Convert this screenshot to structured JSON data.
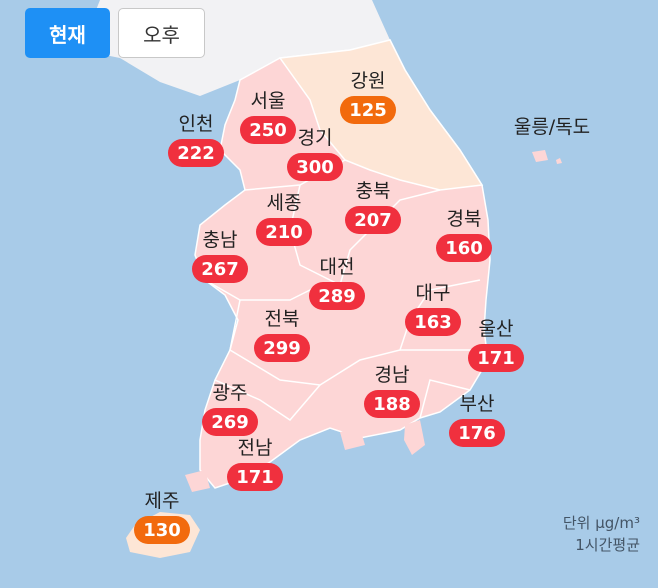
{
  "tabs": {
    "current": "현재",
    "afternoon": "오후"
  },
  "colors": {
    "very_bad": "#f0303e",
    "bad": "#f26a0d",
    "sea": "#a8cbe8",
    "land": "#fdd6d6",
    "land_gangwon": "#fde6d6",
    "north": "#f2f2f4"
  },
  "regions": {
    "seoul": {
      "name": "서울",
      "value": "250"
    },
    "gyeonggi": {
      "name": "경기",
      "value": "300"
    },
    "incheon": {
      "name": "인천",
      "value": "222"
    },
    "gangwon": {
      "name": "강원",
      "value": "125"
    },
    "ulleung": {
      "name": "울릉/독도",
      "value": ""
    },
    "chungbuk": {
      "name": "충북",
      "value": "207"
    },
    "sejong": {
      "name": "세종",
      "value": "210"
    },
    "chungnam": {
      "name": "충남",
      "value": "267"
    },
    "gyeongbuk": {
      "name": "경북",
      "value": "160"
    },
    "daejeon": {
      "name": "대전",
      "value": "289"
    },
    "daegu": {
      "name": "대구",
      "value": "163"
    },
    "jeonbuk": {
      "name": "전북",
      "value": "299"
    },
    "ulsan": {
      "name": "울산",
      "value": "171"
    },
    "gyeongnam": {
      "name": "경남",
      "value": "188"
    },
    "gwangju": {
      "name": "광주",
      "value": "269"
    },
    "busan": {
      "name": "부산",
      "value": "176"
    },
    "jeonnam": {
      "name": "전남",
      "value": "171"
    },
    "jeju": {
      "name": "제주",
      "value": "130"
    }
  },
  "unit": {
    "line1": "단위 μg/m³",
    "line2": "1시간평균"
  }
}
